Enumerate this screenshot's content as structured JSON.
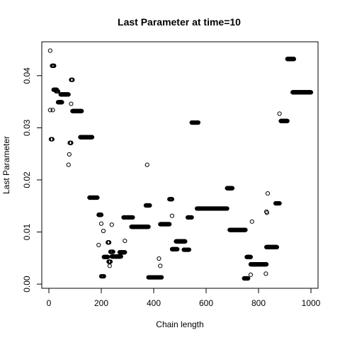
{
  "chart_data": {
    "type": "scatter",
    "title": "Last Parameter at time=10",
    "xlabel": "Chain length",
    "ylabel": "Last Parameter",
    "xlim": [
      -27,
      1027
    ],
    "ylim": [
      -0.0008,
      0.0465
    ],
    "xticks": [
      0,
      200,
      400,
      600,
      800,
      1000
    ],
    "xtick_labels": [
      "0",
      "200",
      "400",
      "600",
      "800",
      "1000"
    ],
    "yticks": [
      0.0,
      0.01,
      0.02,
      0.03,
      0.04
    ],
    "ytick_labels": [
      "0.00",
      "0.01",
      "0.02",
      "0.03",
      "0.04"
    ],
    "grid": false,
    "legend": "none",
    "marker": "open-circle",
    "points": [
      [
        5,
        0.0448
      ],
      [
        5,
        0.0334
      ],
      [
        15,
        0.0334
      ],
      [
        12,
        0.0419
      ],
      [
        75,
        0.0229
      ],
      [
        78,
        0.0249
      ],
      [
        80,
        0.0271
      ],
      [
        85,
        0.0346
      ],
      [
        90,
        0.0392
      ],
      [
        190,
        0.0075
      ],
      [
        200,
        0.0116
      ],
      [
        208,
        0.0102
      ],
      [
        232,
        0.0035
      ],
      [
        240,
        0.0114
      ],
      [
        290,
        0.0083
      ],
      [
        375,
        0.0229
      ],
      [
        420,
        0.0049
      ],
      [
        425,
        0.0035
      ],
      [
        470,
        0.0131
      ],
      [
        770,
        0.0018
      ],
      [
        775,
        0.012
      ],
      [
        828,
        0.002
      ],
      [
        830,
        0.0139
      ],
      [
        832,
        0.0137
      ],
      [
        835,
        0.0174
      ],
      [
        880,
        0.0327
      ]
    ],
    "runs": [
      [
        8,
        13,
        0.0278
      ],
      [
        15,
        20,
        0.0419
      ],
      [
        18,
        30,
        0.0373
      ],
      [
        28,
        35,
        0.037
      ],
      [
        35,
        50,
        0.0349
      ],
      [
        45,
        75,
        0.0364
      ],
      [
        80,
        85,
        0.0271
      ],
      [
        85,
        90,
        0.0392
      ],
      [
        90,
        125,
        0.0332
      ],
      [
        120,
        165,
        0.0282
      ],
      [
        155,
        185,
        0.0166
      ],
      [
        190,
        200,
        0.0133
      ],
      [
        200,
        210,
        0.0015
      ],
      [
        210,
        225,
        0.0052
      ],
      [
        225,
        230,
        0.008
      ],
      [
        228,
        235,
        0.0043
      ],
      [
        235,
        245,
        0.0062
      ],
      [
        240,
        275,
        0.0053
      ],
      [
        270,
        290,
        0.0061
      ],
      [
        285,
        320,
        0.0128
      ],
      [
        315,
        380,
        0.011
      ],
      [
        370,
        385,
        0.0151
      ],
      [
        380,
        430,
        0.0013
      ],
      [
        425,
        460,
        0.0115
      ],
      [
        460,
        470,
        0.0163
      ],
      [
        470,
        490,
        0.0067
      ],
      [
        485,
        520,
        0.0082
      ],
      [
        515,
        535,
        0.0066
      ],
      [
        530,
        545,
        0.0128
      ],
      [
        545,
        570,
        0.031
      ],
      [
        565,
        680,
        0.0145
      ],
      [
        680,
        700,
        0.0184
      ],
      [
        690,
        750,
        0.0104
      ],
      [
        745,
        760,
        0.0011
      ],
      [
        755,
        770,
        0.0052
      ],
      [
        770,
        830,
        0.0038
      ],
      [
        830,
        870,
        0.0071
      ],
      [
        865,
        880,
        0.0155
      ],
      [
        885,
        910,
        0.0313
      ],
      [
        910,
        935,
        0.0432
      ],
      [
        930,
        1000,
        0.0368
      ]
    ]
  }
}
